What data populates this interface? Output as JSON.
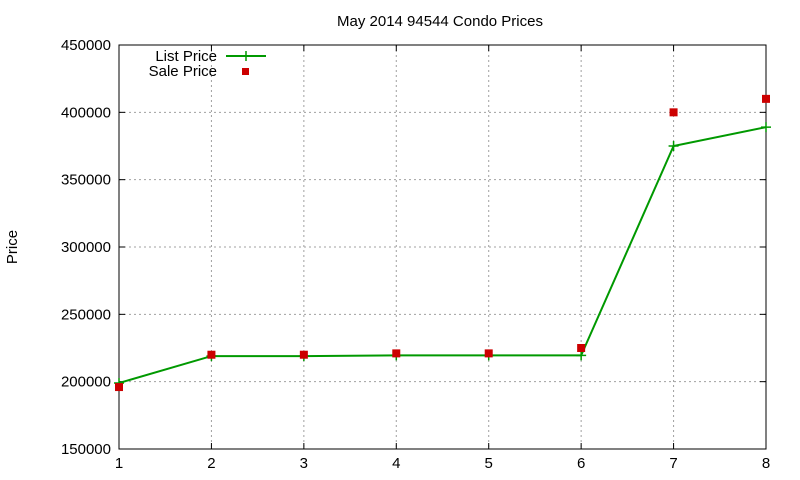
{
  "chart_data": {
    "type": "line",
    "title": "May 2014 94544 Condo Prices",
    "xlabel": "",
    "ylabel": "Price",
    "x": [
      1,
      2,
      3,
      4,
      5,
      6,
      7,
      8
    ],
    "xlim": [
      1,
      8
    ],
    "ylim": [
      150000,
      450000
    ],
    "xticks": [
      "1",
      "2",
      "3",
      "4",
      "5",
      "6",
      "7",
      "8"
    ],
    "yticks": [
      "150000",
      "200000",
      "250000",
      "300000",
      "350000",
      "400000",
      "450000"
    ],
    "grid": true,
    "legend_position": "top-left",
    "series": [
      {
        "name": "List Price",
        "style": "line-with-plus-markers",
        "color": "#009900",
        "values": [
          199000,
          219000,
          219000,
          219500,
          219500,
          219500,
          375000,
          389000
        ]
      },
      {
        "name": "Sale Price",
        "style": "square-markers",
        "color": "#cc0000",
        "values": [
          196000,
          220000,
          220000,
          221000,
          221000,
          225000,
          400000,
          410000
        ]
      }
    ]
  }
}
